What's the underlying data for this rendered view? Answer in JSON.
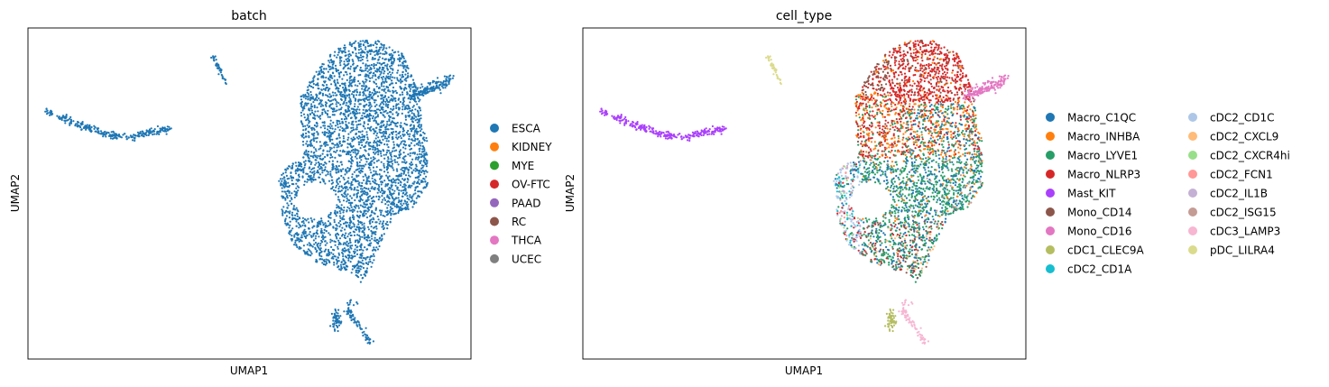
{
  "chart_data": [
    {
      "type": "scatter",
      "title": "batch",
      "xlabel": "UMAP1",
      "ylabel": "UMAP2",
      "ticks": "none",
      "grid": false,
      "legend": "right",
      "categories": [
        {
          "name": "ESCA",
          "color": "#1f77b4"
        },
        {
          "name": "KIDNEY",
          "color": "#ff7f0e"
        },
        {
          "name": "MYE",
          "color": "#2ca02c"
        },
        {
          "name": "OV-FTC",
          "color": "#d62728"
        },
        {
          "name": "PAAD",
          "color": "#9467bd"
        },
        {
          "name": "RC",
          "color": "#8c564b"
        },
        {
          "name": "THCA",
          "color": "#e377c2"
        },
        {
          "name": "UCEC",
          "color": "#7f7f7f"
        }
      ]
    },
    {
      "type": "scatter",
      "title": "cell_type",
      "xlabel": "UMAP1",
      "ylabel": "UMAP2",
      "ticks": "none",
      "grid": false,
      "legend": "right",
      "legend_columns": 2,
      "categories": [
        {
          "name": "Macro_C1QC",
          "color": "#1f77b4"
        },
        {
          "name": "Macro_INHBA",
          "color": "#ff7f0e"
        },
        {
          "name": "Macro_LYVE1",
          "color": "#279e68"
        },
        {
          "name": "Macro_NLRP3",
          "color": "#d62728"
        },
        {
          "name": "Mast_KIT",
          "color": "#aa40fc"
        },
        {
          "name": "Mono_CD14",
          "color": "#8c564b"
        },
        {
          "name": "Mono_CD16",
          "color": "#e377c2"
        },
        {
          "name": "cDC1_CLEC9A",
          "color": "#b5bd61"
        },
        {
          "name": "cDC2_CD1A",
          "color": "#17becf"
        },
        {
          "name": "cDC2_CD1C",
          "color": "#aec7e8"
        },
        {
          "name": "cDC2_CXCL9",
          "color": "#ffbb78"
        },
        {
          "name": "cDC2_CXCR4hi",
          "color": "#98df8a"
        },
        {
          "name": "cDC2_FCN1",
          "color": "#ff9896"
        },
        {
          "name": "cDC2_IL1B",
          "color": "#c5b0d5"
        },
        {
          "name": "cDC2_ISG15",
          "color": "#c49c94"
        },
        {
          "name": "cDC3_LAMP3",
          "color": "#f7b6d2"
        },
        {
          "name": "pDC_LILRA4",
          "color": "#dbdb8d"
        }
      ]
    }
  ]
}
